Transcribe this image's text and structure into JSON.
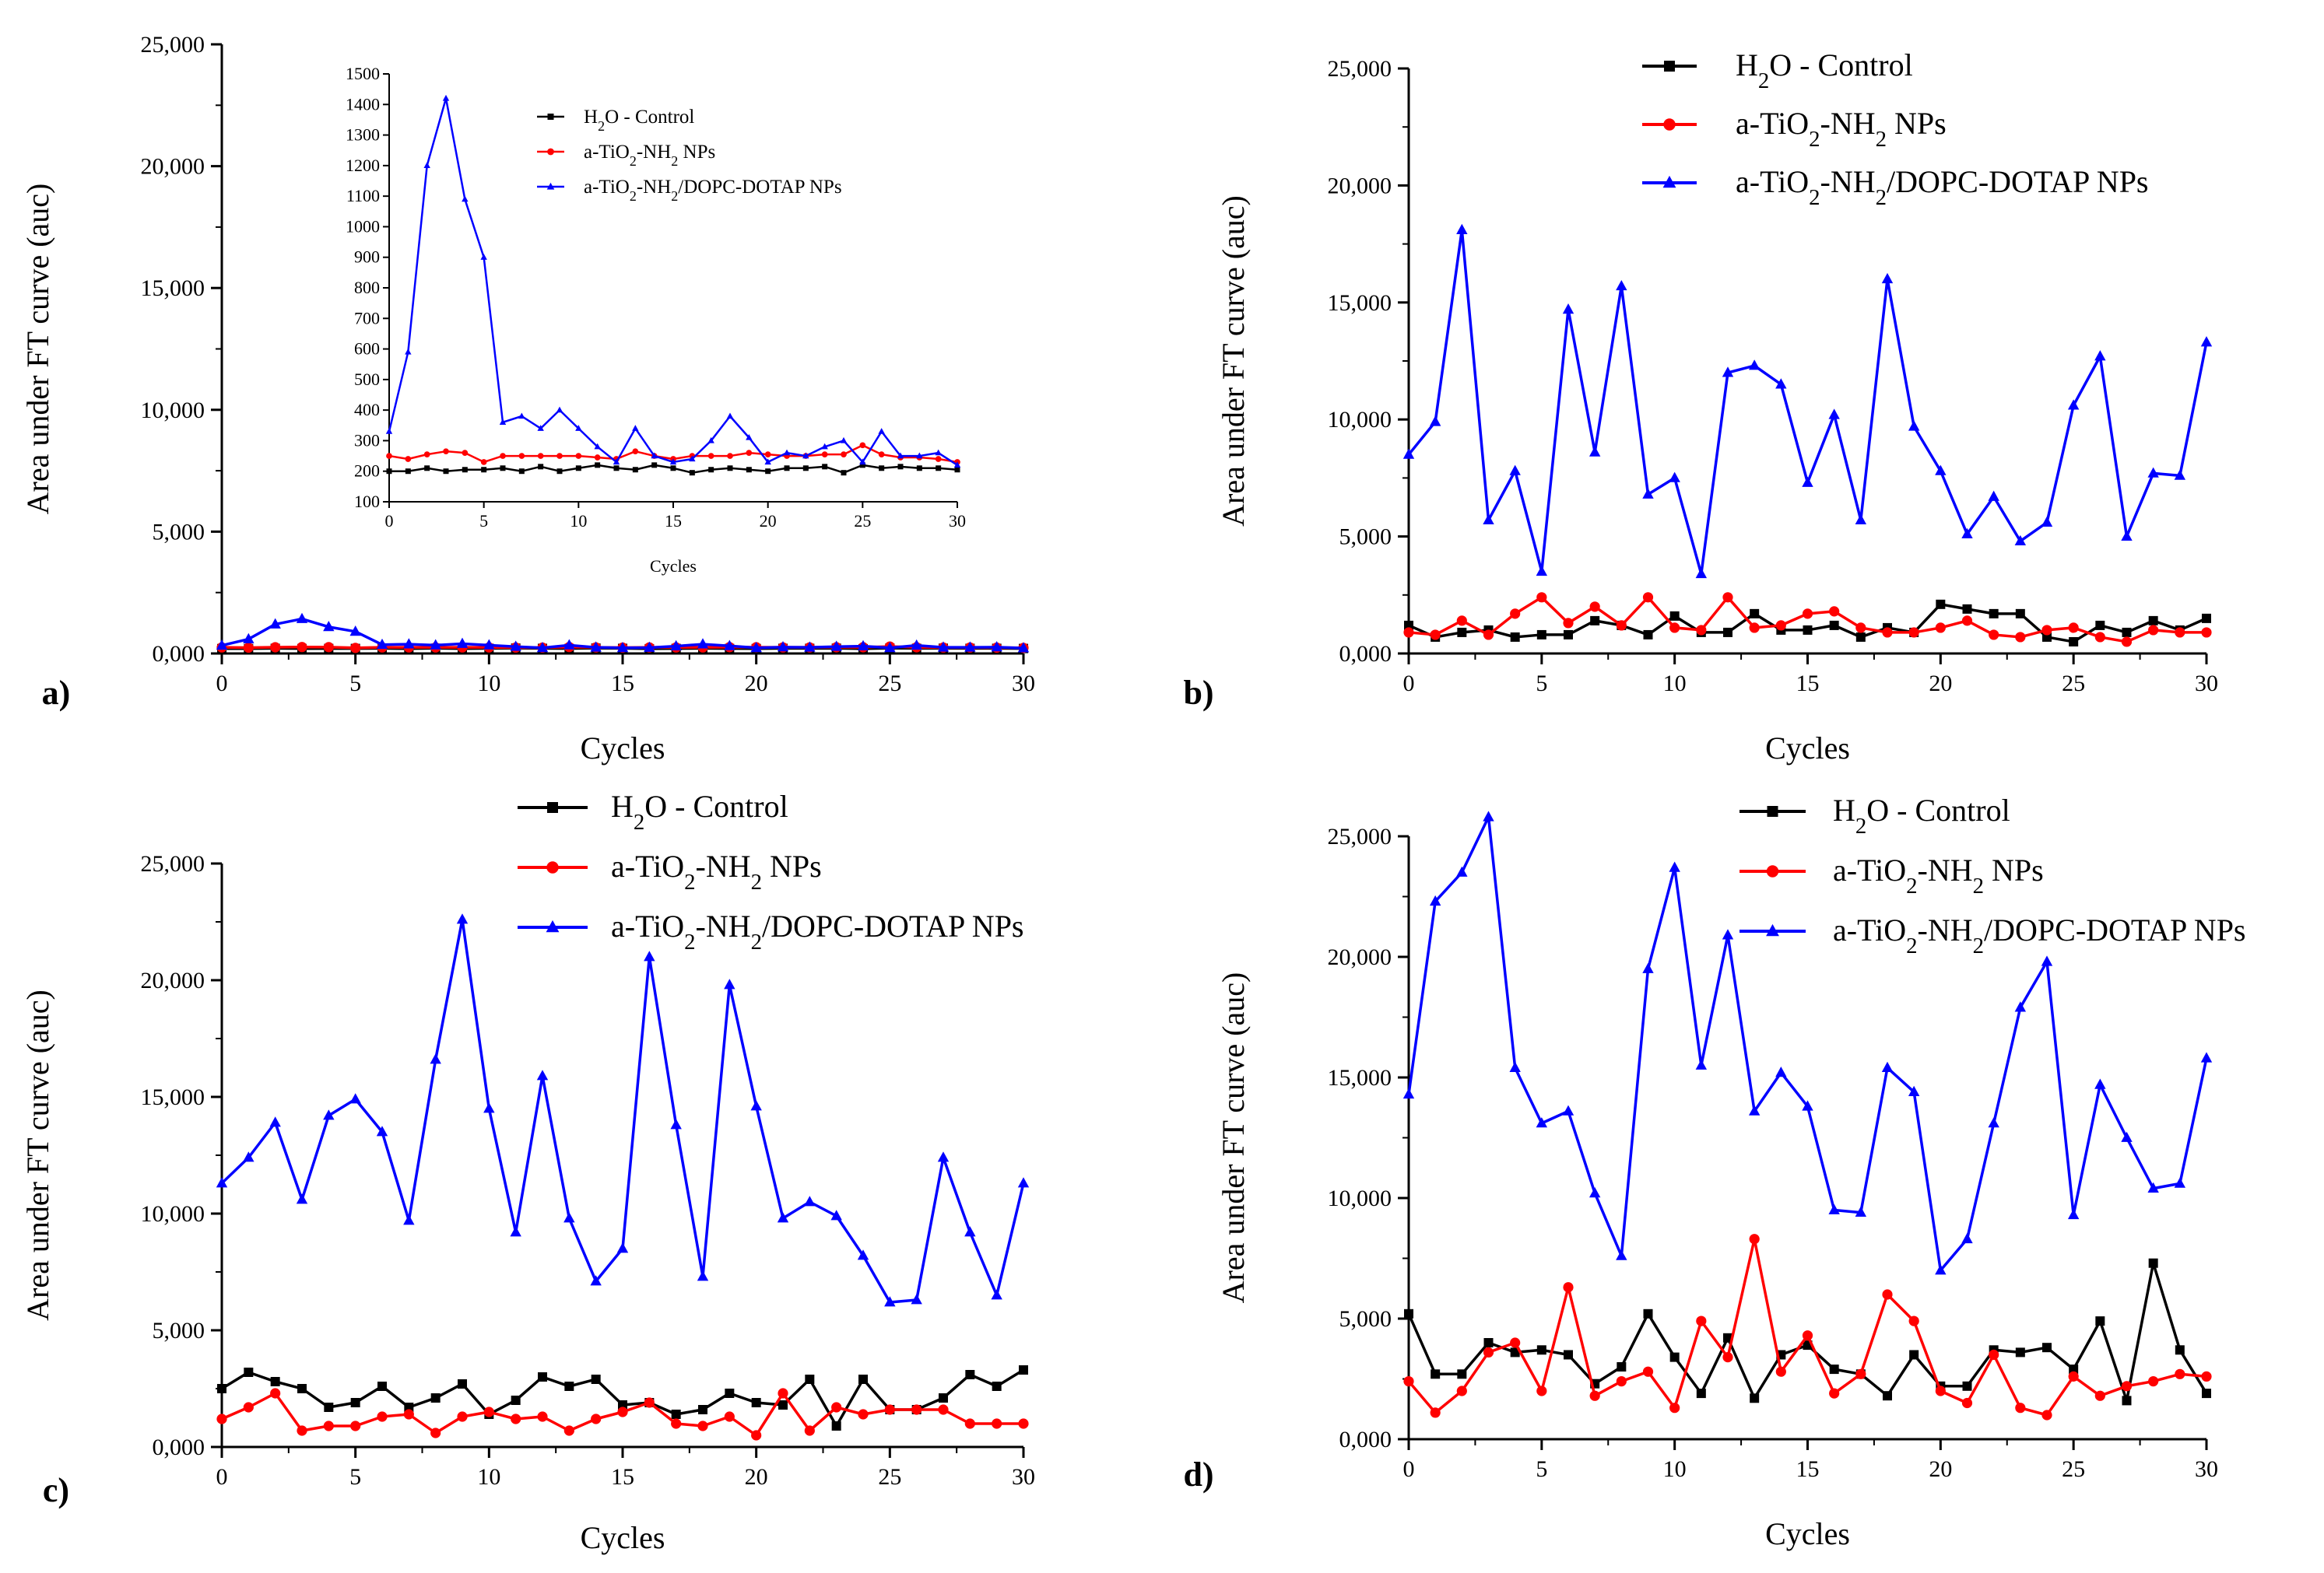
{
  "chart_data": [
    {
      "panel_label": "a)",
      "type": "line",
      "xlabel": "Cycles",
      "ylabel": "Area under FT curve (auc)",
      "xlim": [
        0,
        30
      ],
      "ylim": [
        0,
        25000
      ],
      "xticks": [
        0,
        5,
        10,
        15,
        20,
        25,
        30
      ],
      "yticks": [
        0,
        5000,
        10000,
        15000,
        20000,
        25000
      ],
      "ytick_labels": [
        "0,000",
        "5,000",
        "10,000",
        "15,000",
        "20,000",
        "25,000"
      ],
      "legend": "inside inset",
      "series": [
        {
          "name": "H2O - Control",
          "color": "#000000",
          "marker": "square",
          "values": [
            200,
            200,
            210,
            200,
            205,
            205,
            210,
            200,
            215,
            200,
            210,
            220,
            210,
            205,
            220,
            210,
            195,
            205,
            210,
            205,
            200,
            210,
            210,
            215,
            195,
            220,
            210,
            215,
            210,
            210,
            205
          ]
        },
        {
          "name": "a-TiO2-NH2 NPs",
          "color": "#ff0000",
          "marker": "circle",
          "values": [
            250,
            240,
            255,
            265,
            260,
            230,
            250,
            250,
            250,
            250,
            250,
            245,
            240,
            265,
            250,
            240,
            250,
            250,
            250,
            260,
            255,
            250,
            250,
            255,
            255,
            285,
            255,
            245,
            245,
            240,
            230
          ]
        },
        {
          "name": "a-TiO2-NH2/DOPC-DOTAP NPs",
          "color": "#0000ff",
          "marker": "triangle",
          "values": [
            330,
            590,
            1200,
            1420,
            1090,
            900,
            360,
            380,
            340,
            400,
            340,
            280,
            230,
            340,
            250,
            230,
            240,
            300,
            380,
            310,
            230,
            260,
            250,
            280,
            300,
            230,
            330,
            250,
            250,
            260,
            220
          ]
        }
      ],
      "inset": {
        "xlabel": "Cycles",
        "xlim": [
          0,
          30
        ],
        "ylim": [
          100,
          1500
        ],
        "xticks": [
          0,
          5,
          10,
          15,
          20,
          25,
          30
        ],
        "yticks": [
          100,
          200,
          300,
          400,
          500,
          600,
          700,
          800,
          900,
          1000,
          1100,
          1200,
          1300,
          1400,
          1500
        ]
      }
    },
    {
      "panel_label": "b)",
      "type": "line",
      "xlabel": "Cycles",
      "ylabel": "Area under FT curve (auc)",
      "xlim": [
        0,
        30
      ],
      "ylim": [
        0,
        25000
      ],
      "xticks": [
        0,
        5,
        10,
        15,
        20,
        25,
        30
      ],
      "yticks": [
        0,
        5000,
        10000,
        15000,
        20000,
        25000
      ],
      "ytick_labels": [
        "0,000",
        "5,000",
        "10,000",
        "15,000",
        "20,000",
        "25,000"
      ],
      "legend": "top-right",
      "series": [
        {
          "name": "H2O - Control",
          "color": "#000000",
          "marker": "square",
          "values": [
            1200,
            700,
            900,
            1000,
            700,
            800,
            800,
            1400,
            1200,
            800,
            1600,
            900,
            900,
            1700,
            1000,
            1000,
            1200,
            700,
            1100,
            900,
            2100,
            1900,
            1700,
            1700,
            700,
            500,
            1200,
            900,
            1400,
            1000,
            1500
          ]
        },
        {
          "name": "a-TiO2-NH2 NPs",
          "color": "#ff0000",
          "marker": "circle",
          "values": [
            900,
            800,
            1400,
            800,
            1700,
            2400,
            1300,
            2000,
            1200,
            2400,
            1100,
            1000,
            2400,
            1100,
            1200,
            1700,
            1800,
            1100,
            900,
            900,
            1100,
            1400,
            800,
            700,
            1000,
            1100,
            700,
            500,
            1000,
            900,
            900
          ]
        },
        {
          "name": "a-TiO2-NH2/DOPC-DOTAP NPs",
          "color": "#0000ff",
          "marker": "triangle",
          "values": [
            8500,
            9900,
            18100,
            5700,
            7800,
            3500,
            14700,
            8600,
            15700,
            6800,
            7500,
            3400,
            12000,
            12300,
            11500,
            7300,
            10200,
            5700,
            16000,
            9700,
            7800,
            5100,
            6700,
            4800,
            5600,
            10600,
            12700,
            5000,
            7700,
            7600,
            13300
          ]
        }
      ]
    },
    {
      "panel_label": "c)",
      "type": "line",
      "xlabel": "Cycles",
      "ylabel": "Area under FT curve (auc)",
      "xlim": [
        0,
        30
      ],
      "ylim": [
        0,
        25000
      ],
      "xticks": [
        0,
        5,
        10,
        15,
        20,
        25,
        30
      ],
      "yticks": [
        0,
        5000,
        10000,
        15000,
        20000,
        25000
      ],
      "ytick_labels": [
        "0,000",
        "5,000",
        "10,000",
        "15,000",
        "20,000",
        "25,000"
      ],
      "legend": "top-right",
      "series": [
        {
          "name": "H2O - Control",
          "color": "#000000",
          "marker": "square",
          "values": [
            2500,
            3200,
            2800,
            2500,
            1700,
            1900,
            2600,
            1700,
            2100,
            2700,
            1400,
            2000,
            3000,
            2600,
            2900,
            1800,
            1900,
            1400,
            1600,
            2300,
            1900,
            1800,
            2900,
            900,
            2900,
            1600,
            1600,
            2100,
            3100,
            2600,
            3300
          ]
        },
        {
          "name": "a-TiO2-NH2 NPs",
          "color": "#ff0000",
          "marker": "circle",
          "values": [
            1200,
            1700,
            2300,
            700,
            900,
            900,
            1300,
            1400,
            600,
            1300,
            1500,
            1200,
            1300,
            700,
            1200,
            1500,
            1900,
            1000,
            900,
            1300,
            500,
            2300,
            700,
            1700,
            1400,
            1600,
            1600,
            1600,
            1000,
            1000,
            1000
          ]
        },
        {
          "name": "a-TiO2-NH2/DOPC-DOTAP NPs",
          "color": "#0000ff",
          "marker": "triangle",
          "values": [
            11300,
            12400,
            13900,
            10600,
            14200,
            14900,
            13500,
            9700,
            16600,
            22600,
            14500,
            9200,
            15900,
            9800,
            7100,
            8500,
            21000,
            13800,
            7300,
            19800,
            14600,
            9800,
            10500,
            9900,
            8200,
            6200,
            6300,
            12400,
            9200,
            6500,
            11300
          ]
        }
      ]
    },
    {
      "panel_label": "d)",
      "type": "line",
      "xlabel": "Cycles",
      "ylabel": "Area under FT curve (auc)",
      "xlim": [
        0,
        30
      ],
      "ylim": [
        0,
        25000
      ],
      "xticks": [
        0,
        5,
        10,
        15,
        20,
        25,
        30
      ],
      "yticks": [
        0,
        5000,
        10000,
        15000,
        20000,
        25000
      ],
      "ytick_labels": [
        "0,000",
        "5,000",
        "10,000",
        "15,000",
        "20,000",
        "25,000"
      ],
      "legend": "top-right",
      "series": [
        {
          "name": "H2O - Control",
          "color": "#000000",
          "marker": "square",
          "values": [
            5200,
            2700,
            2700,
            4000,
            3600,
            3700,
            3500,
            2300,
            3000,
            5200,
            3400,
            1900,
            4200,
            1700,
            3500,
            3900,
            2900,
            2700,
            1800,
            3500,
            2200,
            2200,
            3700,
            3600,
            3800,
            2900,
            4900,
            1600,
            7300,
            3700,
            1900
          ]
        },
        {
          "name": "a-TiO2-NH2 NPs",
          "color": "#ff0000",
          "marker": "circle",
          "values": [
            2400,
            1100,
            2000,
            3600,
            4000,
            2000,
            6300,
            1800,
            2400,
            2800,
            1300,
            4900,
            3400,
            8300,
            2800,
            4300,
            1900,
            2700,
            6000,
            4900,
            2000,
            1500,
            3500,
            1300,
            1000,
            2600,
            1800,
            2200,
            2400,
            2700,
            2600
          ]
        },
        {
          "name": "a-TiO2-NH2/DOPC-DOTAP NPs",
          "color": "#0000ff",
          "marker": "triangle",
          "values": [
            14300,
            22300,
            23500,
            25800,
            15400,
            13100,
            13600,
            10200,
            7600,
            19500,
            23700,
            15500,
            20900,
            13600,
            15200,
            13800,
            9500,
            9400,
            15400,
            14400,
            7000,
            8300,
            13100,
            17900,
            19800,
            9300,
            14700,
            12500,
            10400,
            10600,
            15800
          ]
        }
      ]
    }
  ]
}
